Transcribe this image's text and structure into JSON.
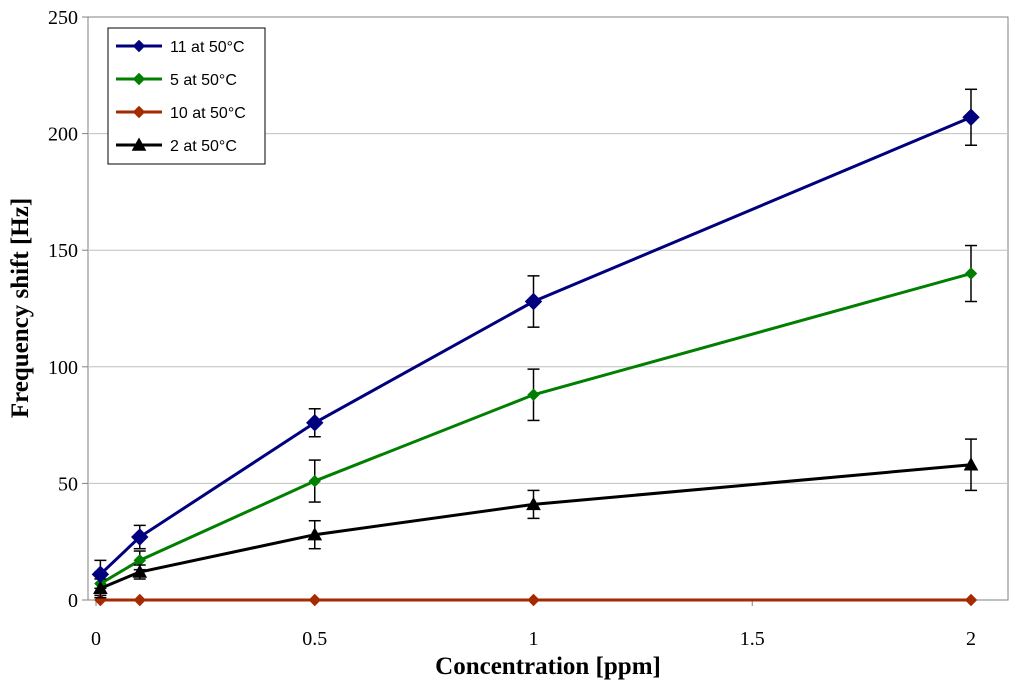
{
  "chart_data": {
    "type": "line",
    "title": "",
    "xlabel": "Concentration [ppm]",
    "ylabel": "Frequency shift [Hz]",
    "xlim": [
      0,
      2.1
    ],
    "ylim": [
      0,
      250
    ],
    "x_ticks": [
      0,
      0.5,
      1,
      1.5,
      2
    ],
    "x_tick_labels": [
      "0",
      "0.5",
      "1",
      "1.5",
      "2"
    ],
    "y_ticks": [
      0,
      50,
      100,
      150,
      200,
      250
    ],
    "y_tick_labels": [
      "0",
      "50",
      "100",
      "150",
      "200",
      "250"
    ],
    "grid": "horizontal",
    "legend_position": "top-left",
    "series": [
      {
        "name": "11 at 50°C",
        "color": "#00007f",
        "marker": "diamond-large",
        "x": [
          0.01,
          0.1,
          0.5,
          1,
          2
        ],
        "values": [
          11,
          27,
          76,
          128,
          207
        ],
        "errors": [
          6,
          5,
          6,
          11,
          12
        ]
      },
      {
        "name": "5 at 50°C",
        "color": "#007f00",
        "marker": "diamond",
        "x": [
          0.01,
          0.1,
          0.5,
          1,
          2
        ],
        "values": [
          7,
          17,
          51,
          88,
          140
        ],
        "errors": [
          5,
          4,
          9,
          11,
          12
        ]
      },
      {
        "name": "10 at 50°C",
        "color": "#a52a00",
        "marker": "diamond",
        "x": [
          0.01,
          0.1,
          0.5,
          1,
          2
        ],
        "values": [
          0,
          0,
          0,
          0,
          0
        ],
        "errors": [
          0,
          0,
          0,
          0,
          0
        ]
      },
      {
        "name": "2 at 50°C",
        "color": "#000000",
        "marker": "triangle",
        "x": [
          0.01,
          0.1,
          0.5,
          1,
          2
        ],
        "values": [
          5,
          12,
          28,
          41,
          58
        ],
        "errors": [
          4,
          3,
          6,
          6,
          11
        ]
      }
    ]
  }
}
